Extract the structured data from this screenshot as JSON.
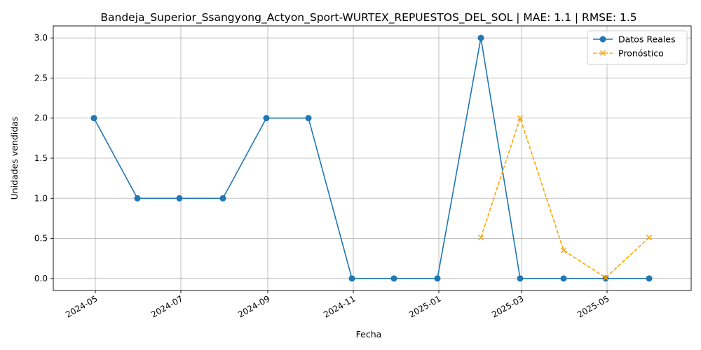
{
  "chart_data": {
    "type": "line",
    "title": "Bandeja_Superior_Ssangyong_Actyon_Sport-WURTEX_REPUESTOS_DEL_SOL | MAE: 1.1 | RMSE: 1.5",
    "xlabel": "Fecha",
    "ylabel": "Unidades vendidas",
    "xlim": [
      "2024-04-01",
      "2025-06-30"
    ],
    "ylim": [
      -0.15,
      3.15
    ],
    "x_ticks": [
      "2024-05",
      "2024-07",
      "2024-09",
      "2024-11",
      "2025-01",
      "2025-03",
      "2025-05"
    ],
    "y_ticks": [
      "0.0",
      "0.5",
      "1.0",
      "1.5",
      "2.0",
      "2.5",
      "3.0"
    ],
    "grid": true,
    "legend_position": "top-right",
    "series": [
      {
        "name": "Datos Reales",
        "color": "#1f77b4",
        "style": "solid",
        "marker": "circle",
        "x": [
          "2024-04-30",
          "2024-05-31",
          "2024-06-30",
          "2024-07-31",
          "2024-08-31",
          "2024-09-30",
          "2024-10-31",
          "2024-11-30",
          "2024-12-31",
          "2025-01-31",
          "2025-02-28",
          "2025-03-31",
          "2025-04-30",
          "2025-05-31"
        ],
        "y": [
          2,
          1,
          1,
          1,
          2,
          2,
          0,
          0,
          0,
          3,
          0,
          0,
          0,
          0
        ]
      },
      {
        "name": "Pronóstico",
        "color": "#ffa500",
        "style": "dashed",
        "marker": "x",
        "x": [
          "2025-01-31",
          "2025-02-28",
          "2025-03-31",
          "2025-04-30",
          "2025-05-31"
        ],
        "y": [
          0.51,
          2.0,
          0.35,
          0.01,
          0.51
        ]
      }
    ]
  }
}
